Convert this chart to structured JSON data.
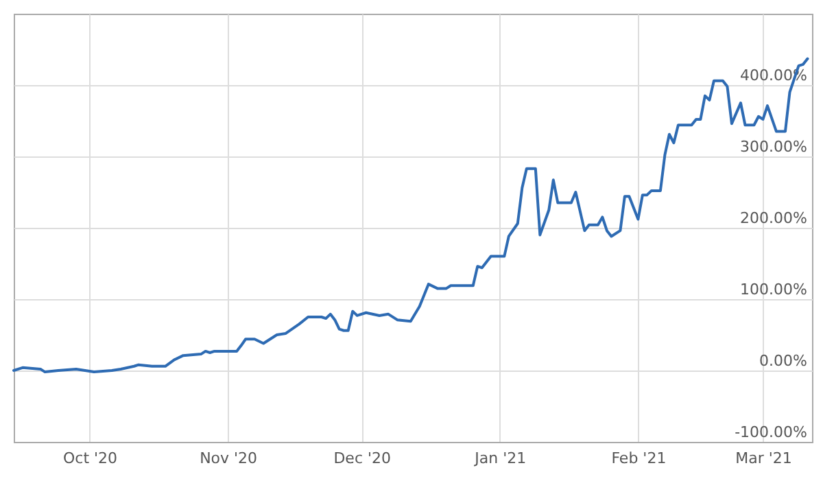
{
  "chart_data": {
    "type": "line",
    "x": [
      "2020-09-14",
      "2020-09-16",
      "2020-09-20",
      "2020-09-21",
      "2020-09-24",
      "2020-09-28",
      "2020-09-30",
      "2020-10-02",
      "2020-10-06",
      "2020-10-08",
      "2020-10-11",
      "2020-10-12",
      "2020-10-15",
      "2020-10-18",
      "2020-10-20",
      "2020-10-22",
      "2020-10-26",
      "2020-10-27",
      "2020-10-28",
      "2020-10-29",
      "2020-11-03",
      "2020-11-04",
      "2020-11-05",
      "2020-11-07",
      "2020-11-09",
      "2020-11-12",
      "2020-11-14",
      "2020-11-17",
      "2020-11-19",
      "2020-11-22",
      "2020-11-23",
      "2020-11-24",
      "2020-11-25",
      "2020-11-26",
      "2020-11-27",
      "2020-11-28",
      "2020-11-29",
      "2020-11-30",
      "2020-12-02",
      "2020-12-05",
      "2020-12-07",
      "2020-12-09",
      "2020-12-12",
      "2020-12-14",
      "2020-12-16",
      "2020-12-18",
      "2020-12-20",
      "2020-12-21",
      "2020-12-26",
      "2020-12-27",
      "2020-12-28",
      "2020-12-30",
      "2021-01-02",
      "2021-01-03",
      "2021-01-05",
      "2021-01-06",
      "2021-01-07",
      "2021-01-09",
      "2021-01-10",
      "2021-01-12",
      "2021-01-13",
      "2021-01-14",
      "2021-01-17",
      "2021-01-18",
      "2021-01-20",
      "2021-01-21",
      "2021-01-23",
      "2021-01-24",
      "2021-01-25",
      "2021-01-26",
      "2021-01-28",
      "2021-01-29",
      "2021-01-30",
      "2021-02-01",
      "2021-02-02",
      "2021-02-03",
      "2021-02-04",
      "2021-02-06",
      "2021-02-07",
      "2021-02-08",
      "2021-02-09",
      "2021-02-10",
      "2021-02-13",
      "2021-02-14",
      "2021-02-15",
      "2021-02-16",
      "2021-02-17",
      "2021-02-18",
      "2021-02-20",
      "2021-02-21",
      "2021-02-22",
      "2021-02-24",
      "2021-02-25",
      "2021-02-27",
      "2021-02-28",
      "2021-03-01",
      "2021-03-02",
      "2021-03-04",
      "2021-03-06",
      "2021-03-07",
      "2021-03-09",
      "2021-03-10",
      "2021-03-11"
    ],
    "series": [
      {
        "color": "#2e6bb3",
        "values": [
          0,
          4,
          2,
          -2,
          0,
          2,
          0,
          -2,
          0,
          2,
          6,
          8,
          6,
          6,
          15,
          21,
          23,
          27,
          25,
          27,
          27,
          35,
          44,
          44,
          38,
          50,
          52,
          65,
          75,
          75,
          73,
          79,
          71,
          58,
          56,
          56,
          83,
          77,
          81,
          77,
          79,
          71,
          69,
          90,
          121,
          115,
          115,
          119,
          119,
          146,
          144,
          160,
          160,
          188,
          206,
          256,
          283,
          283,
          190,
          225,
          267,
          235,
          235,
          250,
          196,
          204,
          204,
          215,
          196,
          188,
          196,
          244,
          244,
          212,
          246,
          246,
          252,
          252,
          302,
          331,
          319,
          344,
          344,
          352,
          352,
          385,
          379,
          406,
          406,
          398,
          346,
          375,
          344,
          344,
          356,
          352,
          371,
          335,
          335,
          390,
          427,
          429,
          437
        ]
      }
    ],
    "xlim": [
      "2020-09-14",
      "2021-03-12"
    ],
    "xticks": [
      {
        "value": "2020-10-01",
        "label": "Oct '20"
      },
      {
        "value": "2020-11-01",
        "label": "Nov '20"
      },
      {
        "value": "2020-12-01",
        "label": "Dec '20"
      },
      {
        "value": "2021-01-01",
        "label": "Jan '21"
      },
      {
        "value": "2021-02-01",
        "label": "Feb '21"
      },
      {
        "value": "2021-03-01",
        "label": "Mar '21"
      }
    ],
    "ylim": [
      -100,
      500
    ],
    "yticks": [
      {
        "value": -100,
        "label": "-100.00%"
      },
      {
        "value": 0,
        "label": "0.00%"
      },
      {
        "value": 100,
        "label": "100.00%"
      },
      {
        "value": 200,
        "label": "200.00%"
      },
      {
        "value": 300,
        "label": "300.00%"
      },
      {
        "value": 400,
        "label": "400.00%"
      }
    ],
    "grid": true,
    "marker": "none",
    "line_style": "solid"
  }
}
